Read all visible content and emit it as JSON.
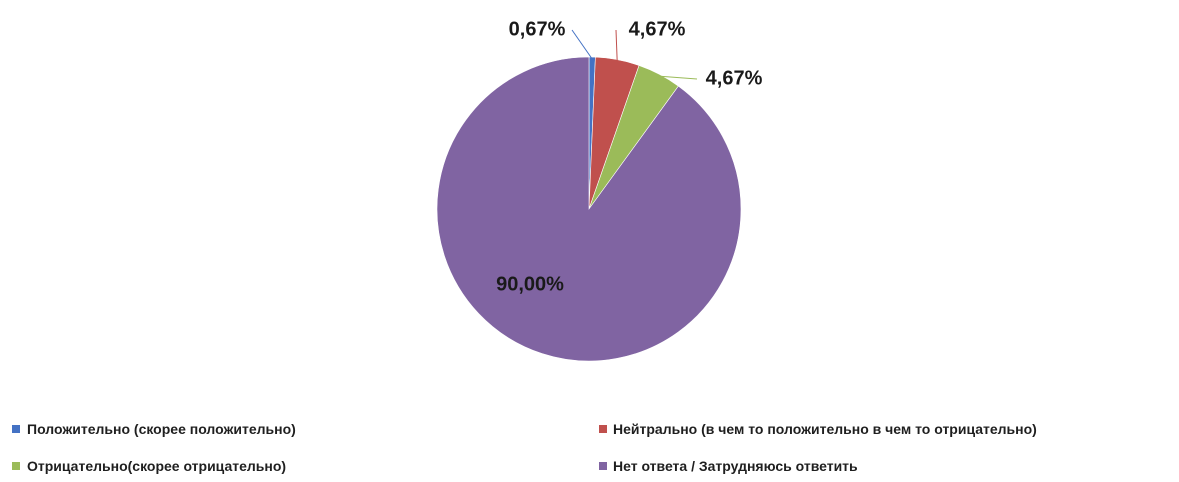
{
  "chart_data": {
    "type": "pie",
    "title": "",
    "legend_position": "bottom",
    "start_angle_deg": 0,
    "direction": "clockwise",
    "slices": [
      {
        "label": "Положительно (скорее положительно)",
        "value": 0.67,
        "display": "0,67%",
        "color": "#4472C4"
      },
      {
        "label": "Нейтрально  (в чем то положительно  в чем то отрицательно)",
        "value": 4.67,
        "display": "4,67%",
        "color": "#C0504D"
      },
      {
        "label": "Отрицательно(скорее отрицательно)",
        "value": 4.67,
        "display": "4,67%",
        "color": "#9BBB59"
      },
      {
        "label": "Нет ответа / Затрудняюсь ответить",
        "value": 90.0,
        "display": "90,00%",
        "color": "#8064A2"
      }
    ]
  }
}
